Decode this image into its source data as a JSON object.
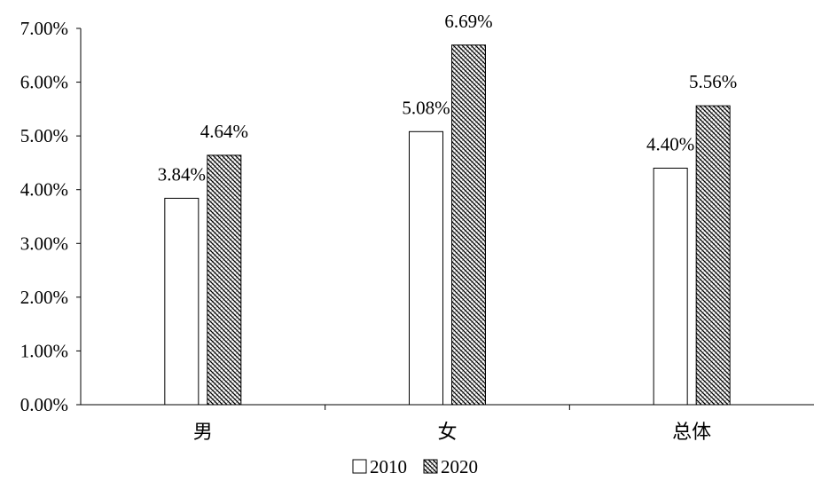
{
  "chart_data": {
    "type": "bar",
    "categories": [
      "男",
      "女",
      "总体"
    ],
    "series": [
      {
        "name": "2010",
        "values": [
          3.84,
          5.08,
          4.4
        ],
        "labels": [
          "3.84%",
          "5.08%",
          "4.40%"
        ],
        "fill": "#ffffff",
        "pattern": "none"
      },
      {
        "name": "2020",
        "values": [
          4.64,
          6.69,
          5.56
        ],
        "labels": [
          "4.64%",
          "6.69%",
          "5.56%"
        ],
        "fill": "#ffffff",
        "pattern": "crosshatch"
      }
    ],
    "ylim": [
      0,
      7
    ],
    "yticks": [
      0,
      1,
      2,
      3,
      4,
      5,
      6,
      7
    ],
    "ytick_labels": [
      "0.00%",
      "1.00%",
      "2.00%",
      "3.00%",
      "4.00%",
      "5.00%",
      "6.00%",
      "7.00%"
    ],
    "title": "",
    "xlabel": "",
    "ylabel": "",
    "grid": false,
    "legend": "bottom-center",
    "colors": {
      "axis": "#000000",
      "bar_stroke": "#000000",
      "background": "#ffffff"
    }
  }
}
